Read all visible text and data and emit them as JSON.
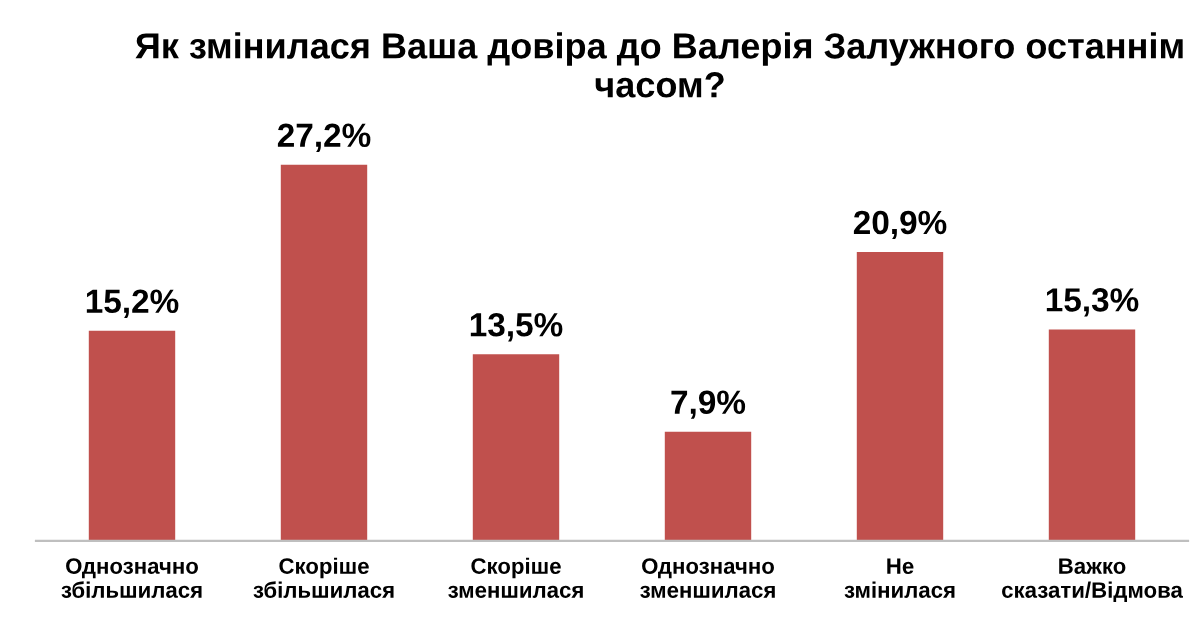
{
  "chart_data": {
    "type": "bar",
    "title": "Як змінилася Ваша довіра до Валерія Залужного останнім часом?",
    "categories": [
      "Однозначно збільшилася",
      "Скоріше збільшилася",
      "Скоріше зменшилася",
      "Однозначно зменшилася",
      "Не змінилася",
      "Важко сказати/Відмова"
    ],
    "values": [
      15.2,
      27.2,
      13.5,
      7.9,
      20.9,
      15.3
    ],
    "value_labels": [
      "15,2%",
      "27,2%",
      "13,5%",
      "7,9%",
      "20,9%",
      "15,3%"
    ],
    "color": "#c0504d",
    "grid": false,
    "legend": false
  }
}
